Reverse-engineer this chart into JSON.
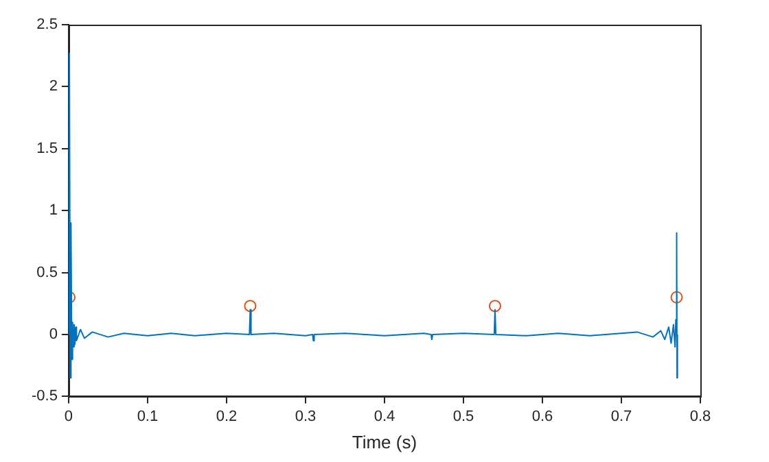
{
  "chart_data": {
    "type": "line",
    "xlabel": "Time (s)",
    "xlim": [
      0,
      0.8
    ],
    "xticks": [
      0,
      0.1,
      0.2,
      0.3,
      0.4,
      0.5,
      0.6,
      0.7,
      0.8
    ],
    "ylim": [
      -0.5,
      2.5
    ],
    "yticks": [
      -0.5,
      0,
      0.5,
      1,
      1.5,
      2,
      2.5
    ],
    "grid": false,
    "legend": false,
    "series": [
      {
        "type": "line",
        "color": "#0072bd",
        "marker": "none",
        "line_style": "solid",
        "x": [
          0,
          0.001,
          0.002,
          0.003,
          0.004,
          0.005,
          0.006,
          0.007,
          0.008,
          0.009,
          0.01,
          0.015,
          0.02,
          0.03,
          0.05,
          0.07,
          0.1,
          0.13,
          0.16,
          0.2,
          0.229,
          0.23,
          0.231,
          0.26,
          0.3,
          0.309,
          0.31,
          0.311,
          0.35,
          0.4,
          0.45,
          0.459,
          0.46,
          0.461,
          0.5,
          0.539,
          0.54,
          0.541,
          0.58,
          0.62,
          0.66,
          0.7,
          0.72,
          0.74,
          0.75,
          0.755,
          0.76,
          0.763,
          0.766,
          0.768,
          0.769,
          0.77,
          0.7705,
          0.771
        ],
        "values": [
          0,
          2.27,
          -0.35,
          0.9,
          -0.2,
          0.1,
          -0.1,
          0.08,
          -0.08,
          0.06,
          -0.05,
          0.04,
          -0.03,
          0.02,
          -0.02,
          0.01,
          -0.01,
          0.01,
          -0.01,
          0.01,
          0,
          0.2,
          0,
          0.01,
          -0.01,
          0,
          -0.05,
          0,
          0.01,
          -0.01,
          0.01,
          0,
          -0.04,
          0,
          0.01,
          0,
          0.2,
          0,
          -0.01,
          0.01,
          -0.01,
          0.01,
          0.02,
          -0.02,
          0.03,
          -0.04,
          0.06,
          -0.07,
          0.08,
          -0.1,
          0.12,
          0.82,
          -0.35,
          0
        ]
      },
      {
        "type": "scatter",
        "color": "#d95319",
        "marker": "circle",
        "x": [
          0.001,
          0.23,
          0.54,
          0.77
        ],
        "values": [
          0.3,
          0.23,
          0.23,
          0.3
        ]
      }
    ]
  }
}
